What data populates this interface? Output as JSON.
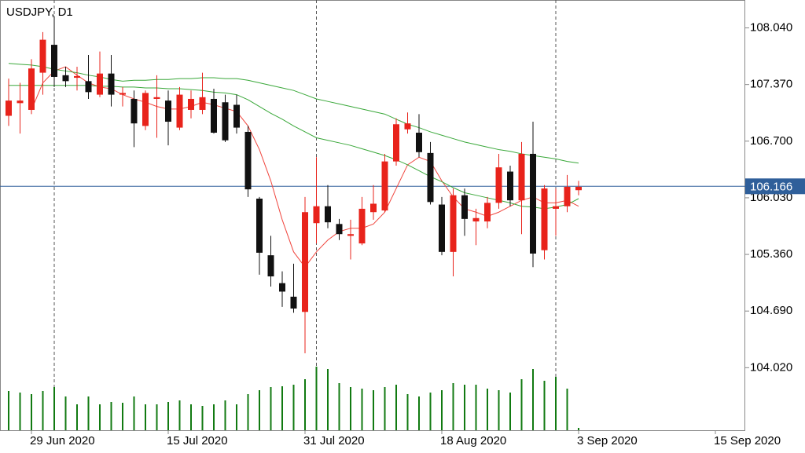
{
  "chart_data": {
    "type": "candlestick",
    "title": "USDJPY, D1",
    "categories": [
      null,
      null,
      "29 Jun 2020",
      null,
      null,
      null,
      null,
      null,
      null,
      null,
      null,
      null,
      null,
      null,
      "15 Jul 2020",
      null,
      null,
      null,
      null,
      null,
      null,
      null,
      null,
      null,
      null,
      null,
      "31 Jul 2020",
      null,
      null,
      null,
      null,
      null,
      null,
      null,
      null,
      null,
      null,
      null,
      "18 Aug 2020",
      null,
      null,
      null,
      null,
      null,
      null,
      null,
      null,
      null,
      null,
      null,
      "3 Sep 2020",
      null,
      null,
      null,
      null,
      null,
      null,
      null,
      null,
      null,
      null,
      null,
      "15 Sep 2020",
      null,
      null
    ],
    "open": [
      107.0,
      107.15,
      107.07,
      107.51,
      107.84,
      107.48,
      107.45,
      107.41,
      107.25,
      107.5,
      107.25,
      107.2,
      106.88,
      107.2,
      107.18,
      106.86,
      107.07,
      107.07,
      107.2,
      107.16,
      107.13,
      106.81,
      106.02,
      105.35,
      105.02,
      104.86,
      104.68,
      105.73,
      105.93,
      105.72,
      105.58,
      105.49,
      105.86,
      105.88,
      106.46,
      106.84,
      106.8,
      106.56,
      105.95,
      105.39,
      106.06,
      105.75,
      105.75,
      105.97,
      106.34,
      106.0,
      106.55,
      105.41,
      105.9,
      105.93,
      106.12,
      null,
      null,
      null,
      null,
      null,
      null,
      null,
      null,
      null,
      null,
      null,
      null,
      null,
      null
    ],
    "high": [
      107.44,
      107.39,
      107.67,
      107.99,
      108.18,
      107.58,
      107.58,
      107.72,
      107.76,
      107.72,
      107.34,
      107.3,
      107.3,
      107.48,
      107.3,
      107.34,
      107.3,
      107.51,
      107.32,
      107.25,
      107.25,
      106.88,
      106.04,
      105.58,
      105.16,
      105.25,
      106.04,
      106.51,
      106.18,
      105.78,
      105.77,
      106.04,
      106.18,
      106.55,
      106.97,
      107.04,
      107.02,
      106.69,
      106.04,
      106.14,
      106.14,
      105.9,
      106.04,
      106.55,
      106.41,
      106.69,
      106.93,
      106.18,
      106.14,
      106.3,
      106.23,
      null,
      null,
      null,
      null,
      null,
      null,
      null,
      null,
      null,
      null,
      null,
      null,
      null,
      null
    ],
    "low": [
      106.88,
      106.79,
      107.02,
      107.25,
      107.34,
      107.34,
      107.3,
      107.2,
      107.22,
      107.11,
      107.11,
      106.63,
      106.83,
      106.74,
      106.65,
      106.83,
      106.97,
      107.02,
      106.79,
      106.69,
      106.79,
      106.04,
      105.12,
      104.98,
      104.74,
      104.67,
      104.19,
      105.49,
      105.67,
      105.53,
      105.3,
      105.47,
      105.77,
      105.86,
      106.41,
      106.79,
      106.51,
      105.95,
      105.35,
      105.1,
      105.58,
      105.47,
      105.67,
      105.9,
      105.93,
      105.6,
      105.21,
      105.3,
      105.58,
      105.86,
      106.06,
      null,
      null,
      null,
      null,
      null,
      null,
      null,
      null,
      null,
      null,
      null,
      null,
      null,
      null
    ],
    "close": [
      107.18,
      107.18,
      107.56,
      107.9,
      107.46,
      107.41,
      107.47,
      107.28,
      107.5,
      107.25,
      107.27,
      106.91,
      107.27,
      107.22,
      106.93,
      107.25,
      107.2,
      107.22,
      106.8,
      106.71,
      106.86,
      106.13,
      105.38,
      105.1,
      104.92,
      104.72,
      105.86,
      105.93,
      105.74,
      105.6,
      105.6,
      105.9,
      105.96,
      106.46,
      106.9,
      106.91,
      106.57,
      105.98,
      105.39,
      106.06,
      105.78,
      105.79,
      105.97,
      106.39,
      106.0,
      106.55,
      105.37,
      106.14,
      105.93,
      106.16,
      106.16,
      null,
      null,
      null,
      null,
      null,
      null,
      null,
      null,
      null,
      null,
      null,
      null,
      null,
      null
    ],
    "volume": [
      50,
      48,
      46,
      50,
      55,
      43,
      33,
      43,
      33,
      36,
      35,
      43,
      33,
      33,
      36,
      38,
      33,
      31,
      33,
      38,
      33,
      46,
      51,
      55,
      56,
      58,
      65,
      81,
      78,
      60,
      55,
      53,
      51,
      55,
      58,
      46,
      43,
      48,
      51,
      60,
      58,
      58,
      53,
      51,
      48,
      65,
      78,
      63,
      68,
      53,
      3,
      null,
      null,
      null,
      null,
      null,
      null,
      null,
      null,
      null,
      null,
      null,
      null,
      null,
      null
    ],
    "up_color": "#e8231b",
    "down_color": "#111111",
    "volume_color": "#117a11",
    "lines": [
      {
        "color": "#f0453d",
        "values": [
          null,
          null,
          107.07,
          107.39,
          107.53,
          107.58,
          107.48,
          107.39,
          107.34,
          107.32,
          107.25,
          107.2,
          107.16,
          107.11,
          107.08,
          107.08,
          107.11,
          107.16,
          107.13,
          107.09,
          107.05,
          106.88,
          106.6,
          106.23,
          105.77,
          105.39,
          105.21,
          105.39,
          105.53,
          105.63,
          105.67,
          105.67,
          105.72,
          105.86,
          106.14,
          106.42,
          106.51,
          106.46,
          106.23,
          106.04,
          105.9,
          105.86,
          105.81,
          105.86,
          105.93,
          106.0,
          106.04,
          105.97,
          105.97,
          106.0,
          105.93,
          null,
          null,
          null,
          null,
          null,
          null,
          null,
          null,
          null,
          null,
          null,
          null,
          null,
          null
        ]
      },
      {
        "color": "#3aa83a",
        "values": [
          107.36,
          107.36,
          107.36,
          107.36,
          107.36,
          107.36,
          107.36,
          107.36,
          107.35,
          107.35,
          107.34,
          107.34,
          107.33,
          107.33,
          107.32,
          107.32,
          107.31,
          107.3,
          107.28,
          107.27,
          107.25,
          107.19,
          107.11,
          107.03,
          106.96,
          106.88,
          106.81,
          106.74,
          106.71,
          106.68,
          106.65,
          106.61,
          106.57,
          106.53,
          106.48,
          106.42,
          106.35,
          106.28,
          106.22,
          106.15,
          106.09,
          106.06,
          106.03,
          106.0,
          105.97,
          105.93,
          105.92,
          105.9,
          105.92,
          105.95,
          106.02,
          null,
          null,
          null,
          null,
          null,
          null,
          null,
          null,
          null,
          null,
          null,
          null,
          null,
          null
        ]
      },
      {
        "color": "#3aa83a",
        "values": [
          107.62,
          107.61,
          107.6,
          107.58,
          107.55,
          107.53,
          107.51,
          107.48,
          107.46,
          107.43,
          107.41,
          107.42,
          107.42,
          107.43,
          107.43,
          107.44,
          107.44,
          107.45,
          107.45,
          107.44,
          107.44,
          107.42,
          107.39,
          107.36,
          107.33,
          107.3,
          107.25,
          107.2,
          107.17,
          107.14,
          107.11,
          107.08,
          107.05,
          107.02,
          106.96,
          106.9,
          106.86,
          106.81,
          106.77,
          106.73,
          106.69,
          106.66,
          106.63,
          106.6,
          106.58,
          106.55,
          106.53,
          106.51,
          106.49,
          106.46,
          106.44,
          null,
          null,
          null,
          null,
          null,
          null,
          null,
          null,
          null,
          null,
          null,
          null,
          null,
          null
        ]
      }
    ],
    "separators": [
      4,
      27,
      48
    ],
    "current_price": {
      "value": 106.166,
      "label": "106.166",
      "color": "#2f5f9a"
    },
    "ylim": [
      103.28,
      108.37
    ],
    "yticks": [
      {
        "value": 108.04,
        "label": "108.040"
      },
      {
        "value": 107.37,
        "label": "107.370"
      },
      {
        "value": 106.7,
        "label": "106.700"
      },
      {
        "value": 106.03,
        "label": "106.030"
      },
      {
        "value": 105.36,
        "label": "105.360"
      },
      {
        "value": 104.69,
        "label": "104.690"
      },
      {
        "value": 104.02,
        "label": "104.020"
      }
    ]
  }
}
